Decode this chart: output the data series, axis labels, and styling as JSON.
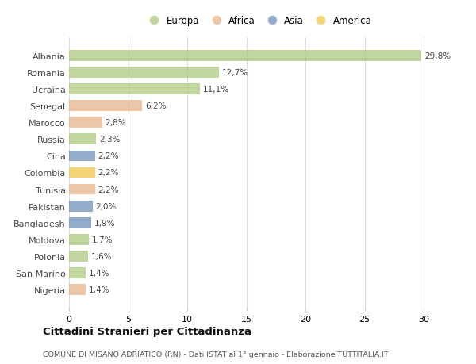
{
  "countries": [
    "Nigeria",
    "San Marino",
    "Polonia",
    "Moldova",
    "Bangladesh",
    "Pakistan",
    "Tunisia",
    "Colombia",
    "Cina",
    "Russia",
    "Marocco",
    "Senegal",
    "Ucraina",
    "Romania",
    "Albania"
  ],
  "values": [
    1.4,
    1.4,
    1.6,
    1.7,
    1.9,
    2.0,
    2.2,
    2.2,
    2.2,
    2.3,
    2.8,
    6.2,
    11.1,
    12.7,
    29.8
  ],
  "labels": [
    "1,4%",
    "1,4%",
    "1,6%",
    "1,7%",
    "1,9%",
    "2,0%",
    "2,2%",
    "2,2%",
    "2,2%",
    "2,3%",
    "2,8%",
    "6,2%",
    "11,1%",
    "12,7%",
    "29,8%"
  ],
  "continents": [
    "Africa",
    "Europa",
    "Europa",
    "Europa",
    "Asia",
    "Asia",
    "Africa",
    "America",
    "Asia",
    "Europa",
    "Africa",
    "Africa",
    "Europa",
    "Europa",
    "Europa"
  ],
  "continent_colors": {
    "Europa": "#adc97e",
    "Africa": "#e8b48a",
    "Asia": "#7090bb",
    "America": "#f0c84a"
  },
  "legend_order": [
    "Europa",
    "Africa",
    "Asia",
    "America"
  ],
  "bg_color": "#ffffff",
  "title": "Cittadini Stranieri per Cittadinanza",
  "subtitle": "COMUNE DI MISANO ADRIATICO (RN) - Dati ISTAT al 1° gennaio - Elaborazione TUTTITALIA.IT",
  "xlim": [
    0,
    32
  ],
  "xticks": [
    0,
    5,
    10,
    15,
    20,
    25,
    30
  ],
  "bar_alpha": 0.75
}
